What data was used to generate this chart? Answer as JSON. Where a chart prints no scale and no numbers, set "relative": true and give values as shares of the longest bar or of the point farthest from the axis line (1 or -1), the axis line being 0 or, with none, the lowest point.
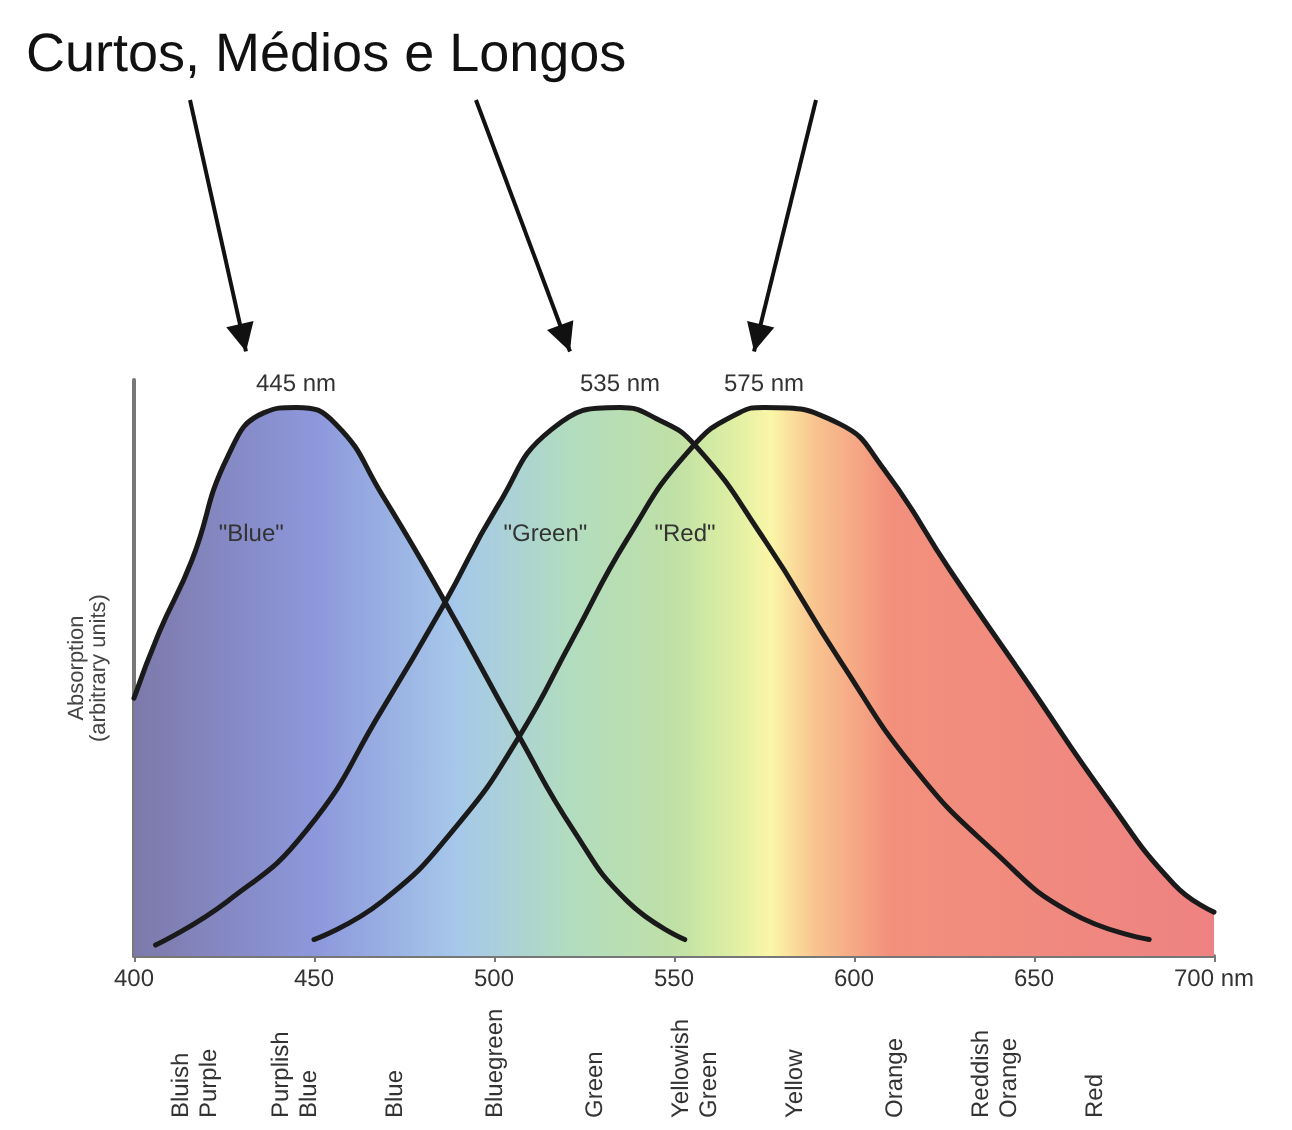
{
  "chart_data": {
    "type": "area",
    "relative": true,
    "title": "Curtos, Médios e Longos",
    "ylabel": "Absorption\n(arbitrary units)",
    "xlim": [
      400,
      700
    ],
    "xticks": [
      400,
      450,
      500,
      550,
      600,
      650,
      {
        "value": 700,
        "label": "700 nm"
      }
    ],
    "marker": "none",
    "line_style": "solid",
    "grid": false,
    "legend": false,
    "series": [
      {
        "name": "\"Blue\"",
        "color": "#1a1a1a",
        "x": [
          400,
          407,
          416,
          426,
          436,
          445,
          456,
          469,
          486,
          507,
          522,
          537,
          553
        ],
        "values": [
          0.47,
          0.59,
          0.72,
          0.91,
          0.99,
          1,
          0.97,
          0.84,
          0.65,
          0.4,
          0.23,
          0.1,
          0.03
        ]
      },
      {
        "name": "\"Green\"",
        "color": "#1a1a1a",
        "x": [
          406,
          426,
          448,
          469,
          486,
          501,
          516,
          535,
          545,
          556,
          575,
          596,
          617,
          639,
          660,
          682
        ],
        "values": [
          0.02,
          0.1,
          0.23,
          0.45,
          0.64,
          0.82,
          0.96,
          1,
          0.98,
          0.93,
          0.76,
          0.54,
          0.34,
          0.19,
          0.08,
          0.03
        ]
      },
      {
        "name": "\"Red\"",
        "color": "#1a1a1a",
        "x": [
          450,
          469,
          490,
          507,
          522,
          537,
          554,
          568,
          575,
          596,
          608,
          627,
          648,
          670,
          689,
          700
        ],
        "values": [
          0.03,
          0.1,
          0.24,
          0.4,
          0.58,
          0.76,
          0.92,
          0.99,
          1,
          0.97,
          0.89,
          0.7,
          0.5,
          0.29,
          0.13,
          0.08
        ]
      }
    ],
    "annotations": [
      {
        "text": "445 nm",
        "x": 445,
        "y": 1
      },
      {
        "text": "535 nm",
        "x": 535,
        "y": 1
      },
      {
        "text": "575 nm",
        "x": 575,
        "y": 1
      },
      "Bluish\nPurple",
      "Purplish\nBlue",
      "Blue",
      "Bluegreen",
      "Green",
      "Yellowish\nGreen",
      "Yellow",
      "Orange",
      "Reddish\nOrange",
      "Red"
    ]
  }
}
